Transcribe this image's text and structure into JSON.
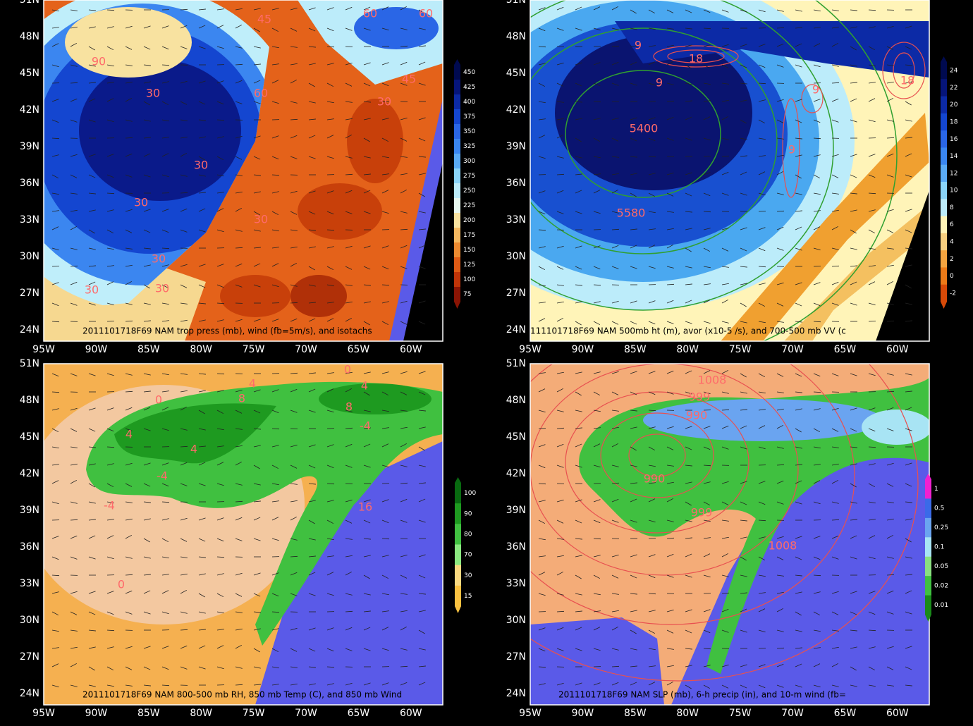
{
  "axes": {
    "lat_labels": [
      "51N",
      "48N",
      "45N",
      "42N",
      "39N",
      "36N",
      "33N",
      "30N",
      "27N",
      "24N"
    ],
    "lon_labels": [
      "95W",
      "90W",
      "85W",
      "80W",
      "75W",
      "70W",
      "65W",
      "60W"
    ]
  },
  "panels": [
    {
      "title": "2011101718F69 NAM trop press (mb), wind (fb=5m/s), and isotachs",
      "colorbar": [
        "450",
        "425",
        "400",
        "375",
        "350",
        "325",
        "300",
        "275",
        "250",
        "225",
        "200",
        "175",
        "150",
        "125",
        "100",
        "75"
      ],
      "colorbar_colors": [
        "#000a50",
        "#06157a",
        "#0c2aa6",
        "#1446d0",
        "#2a66e6",
        "#3a86f0",
        "#5aaaf4",
        "#8ad4f8",
        "#bcecfa",
        "#e8f8f0",
        "#f8e2a0",
        "#f4b860",
        "#ec8a30",
        "#de5a14",
        "#c03408",
        "#8a1404"
      ],
      "contour_labels": [
        "45",
        "60",
        "60",
        "90",
        "30",
        "60",
        "30",
        "45",
        "30",
        "30",
        "30",
        "30",
        "30",
        "30"
      ]
    },
    {
      "title": "111101718F69 NAM 500mb ht (m), avor (x10-5 /s), and 700-500 mb VV (c",
      "colorbar": [
        "24",
        "22",
        "20",
        "18",
        "16",
        "14",
        "12",
        "10",
        "8",
        "6",
        "4",
        "2",
        "0",
        "-2"
      ],
      "colorbar_colors": [
        "#000a50",
        "#06157a",
        "#0c2aa6",
        "#1446d0",
        "#2a66e6",
        "#3a86f0",
        "#5aaaf4",
        "#8ad4f8",
        "#bcecfa",
        "#fff4b8",
        "#f8d080",
        "#f4a440",
        "#ec7a18",
        "#d84a08"
      ],
      "contour_labels": [
        "18",
        "5400",
        "5580",
        "18",
        "9",
        "9",
        "9",
        "9"
      ]
    },
    {
      "title": "2011101718F69 NAM 800-500 mb RH, 850 mb Temp (C), and 850 mb Wind",
      "colorbar": [
        "100",
        "90",
        "80",
        "70",
        "30",
        "15"
      ],
      "colorbar_colors": [
        "#086a10",
        "#1e9a20",
        "#40c040",
        "#8ae880",
        "#f8d880",
        "#f8c040"
      ],
      "contour_labels": [
        "0",
        "0",
        "4",
        "8",
        "4",
        "8",
        "-4",
        "4",
        "4",
        "-4",
        "-4",
        "16",
        "0"
      ]
    },
    {
      "title": "2011101718F69 NAM SLP (mb), 6-h precip (in), and 10-m wind (fb=",
      "colorbar": [
        "1",
        "0.5",
        "0.25",
        "0.1",
        "0.05",
        "0.02",
        "0.01"
      ],
      "colorbar_colors": [
        "#f020d0",
        "#3a6ae8",
        "#6aa4f0",
        "#a8e4f4",
        "#8ae080",
        "#40c040",
        "#1a8a1a"
      ],
      "contour_labels": [
        "1008",
        "999",
        "990",
        "990",
        "999",
        "1008"
      ]
    }
  ]
}
